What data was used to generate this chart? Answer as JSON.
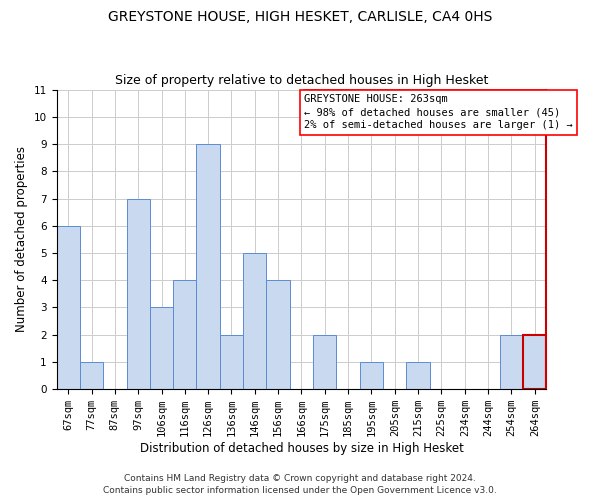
{
  "title": "GREYSTONE HOUSE, HIGH HESKET, CARLISLE, CA4 0HS",
  "subtitle": "Size of property relative to detached houses in High Hesket",
  "xlabel": "Distribution of detached houses by size in High Hesket",
  "ylabel": "Number of detached properties",
  "footer_line1": "Contains HM Land Registry data © Crown copyright and database right 2024.",
  "footer_line2": "Contains public sector information licensed under the Open Government Licence v3.0.",
  "categories": [
    "67sqm",
    "77sqm",
    "87sqm",
    "97sqm",
    "106sqm",
    "116sqm",
    "126sqm",
    "136sqm",
    "146sqm",
    "156sqm",
    "166sqm",
    "175sqm",
    "185sqm",
    "195sqm",
    "205sqm",
    "215sqm",
    "225sqm",
    "234sqm",
    "244sqm",
    "254sqm",
    "264sqm"
  ],
  "values": [
    6,
    1,
    0,
    7,
    3,
    4,
    9,
    2,
    5,
    4,
    0,
    2,
    0,
    1,
    0,
    1,
    0,
    0,
    0,
    2,
    2
  ],
  "bar_color": "#c9d9f0",
  "bar_edge_color": "#5b8cd4",
  "highlight_index": 20,
  "highlight_edge_color": "#cc0000",
  "annotation_text_line1": "GREYSTONE HOUSE: 263sqm",
  "annotation_text_line2": "← 98% of detached houses are smaller (45)",
  "annotation_text_line3": "2% of semi-detached houses are larger (1) →",
  "ylim": [
    0,
    11
  ],
  "yticks": [
    0,
    1,
    2,
    3,
    4,
    5,
    6,
    7,
    8,
    9,
    10,
    11
  ],
  "grid_color": "#cccccc",
  "background_color": "#ffffff",
  "title_fontsize": 10,
  "subtitle_fontsize": 9,
  "axis_label_fontsize": 8.5,
  "tick_fontsize": 7.5,
  "annotation_fontsize": 7.5,
  "footer_fontsize": 6.5
}
